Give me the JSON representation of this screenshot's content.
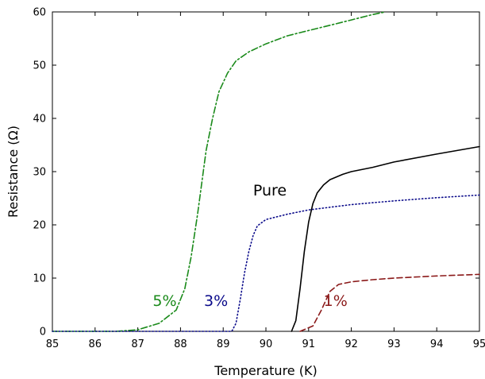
{
  "chart_data": {
    "type": "line",
    "title": "",
    "xlabel": "Temperature (K)",
    "ylabel": "Resistance (Ω)",
    "xlim": [
      85,
      95
    ],
    "ylim": [
      0,
      60
    ],
    "xticks": [
      85,
      86,
      87,
      88,
      89,
      90,
      91,
      92,
      93,
      94,
      95
    ],
    "yticks": [
      0,
      10,
      20,
      30,
      40,
      50,
      60
    ],
    "grid": false,
    "legend": "none",
    "series": [
      {
        "label": "5%",
        "color": "#1a8a1a",
        "line_style": "dash-dot",
        "x": [
          85.0,
          86.5,
          87.0,
          87.5,
          87.9,
          88.1,
          88.25,
          88.4,
          88.5,
          88.6,
          88.75,
          88.9,
          89.1,
          89.3,
          89.6,
          90.0,
          90.5,
          91.0,
          91.5,
          92.0,
          92.5,
          92.8
        ],
        "y": [
          0.0,
          0.0,
          0.3,
          1.5,
          4.0,
          8.0,
          14.0,
          22.0,
          28.0,
          34.0,
          40.0,
          45.0,
          48.5,
          50.8,
          52.5,
          54.0,
          55.5,
          56.5,
          57.5,
          58.5,
          59.5,
          60.0
        ]
      },
      {
        "label": "3%",
        "color": "#0a0a8a",
        "line_style": "dotted",
        "x": [
          85.0,
          89.2,
          89.3,
          89.4,
          89.5,
          89.6,
          89.7,
          89.8,
          90.0,
          90.5,
          91.0,
          92.0,
          93.0,
          94.0,
          95.0
        ],
        "y": [
          0.0,
          0.0,
          1.5,
          6.0,
          11.0,
          15.0,
          18.0,
          19.8,
          21.0,
          22.0,
          22.8,
          23.8,
          24.5,
          25.1,
          25.6
        ]
      },
      {
        "label": "Pure",
        "color": "#000000",
        "line_style": "solid",
        "x": [
          90.6,
          90.7,
          90.8,
          90.9,
          91.0,
          91.1,
          91.2,
          91.35,
          91.5,
          91.8,
          92.0,
          92.5,
          93.0,
          94.0,
          95.0
        ],
        "y": [
          0.0,
          2.0,
          8.0,
          15.0,
          20.5,
          24.0,
          26.0,
          27.5,
          28.5,
          29.5,
          30.0,
          30.8,
          31.8,
          33.3,
          34.7
        ]
      },
      {
        "label": "1%",
        "color": "#8b1a1a",
        "line_style": "dashed",
        "x": [
          90.8,
          91.1,
          91.3,
          91.5,
          91.7,
          92.0,
          92.5,
          93.0,
          94.0,
          95.0
        ],
        "y": [
          0.0,
          1.0,
          4.0,
          7.5,
          8.8,
          9.3,
          9.7,
          10.0,
          10.4,
          10.7
        ]
      }
    ],
    "annotations": [
      {
        "text": "5%",
        "x": 87.35,
        "y": 4.8,
        "color": "#1a8a1a"
      },
      {
        "text": "3%",
        "x": 88.55,
        "y": 4.8,
        "color": "#0a0a8a"
      },
      {
        "text": "Pure",
        "x": 89.7,
        "y": 25.5,
        "color": "#000000"
      },
      {
        "text": "1%",
        "x": 91.35,
        "y": 4.8,
        "color": "#8b1a1a"
      }
    ]
  }
}
